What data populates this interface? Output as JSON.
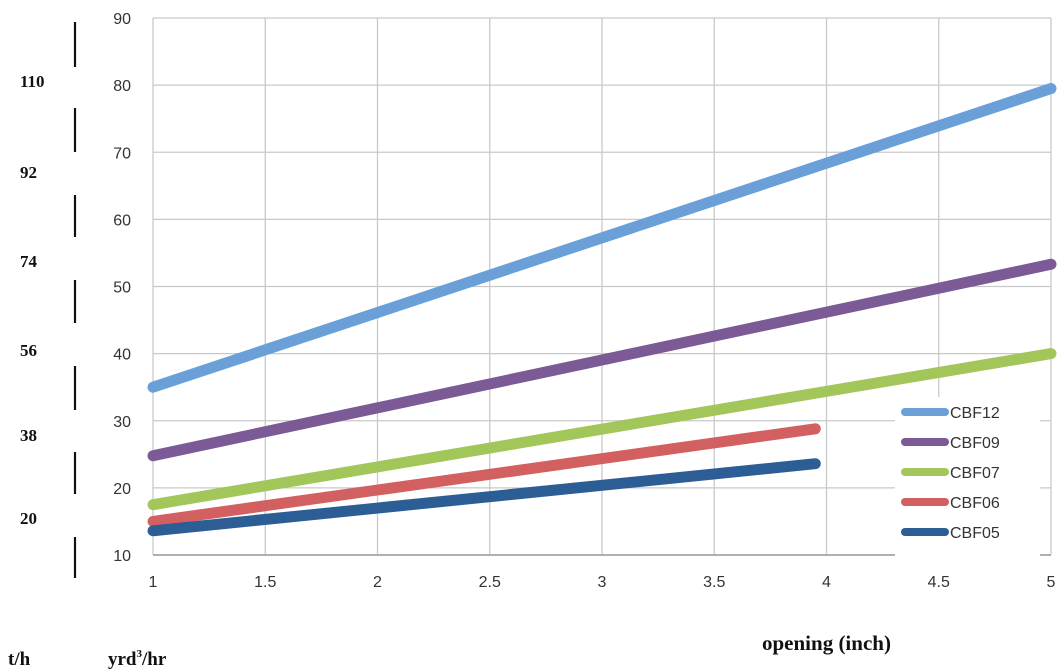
{
  "chart_data": {
    "type": "line",
    "xlabel": "opening (inch)",
    "ylabel": "yrd³/hr",
    "ylabel_base": "yrd",
    "ylabel_sup": "3",
    "ylabel_tail": "/hr",
    "secondary_axis_label": "t/h",
    "xlim": [
      1,
      5
    ],
    "ylim": [
      10,
      90
    ],
    "x_ticks": [
      "1",
      "1.5",
      "2",
      "2.5",
      "3",
      "3.5",
      "4",
      "4.5",
      "5"
    ],
    "y_ticks": [
      "10",
      "20",
      "30",
      "40",
      "50",
      "60",
      "70",
      "80",
      "90"
    ],
    "secondary_ticks": [
      "110",
      "92",
      "74",
      "56",
      "38",
      "20"
    ],
    "grid": true,
    "legend_position": "right",
    "series": [
      {
        "name": "CBF12",
        "color": "#6a9fd8",
        "x": [
          1,
          5
        ],
        "y": [
          35,
          79.5
        ]
      },
      {
        "name": "CBF09",
        "color": "#7b5a96",
        "x": [
          1,
          5
        ],
        "y": [
          24.8,
          53.3
        ]
      },
      {
        "name": "CBF07",
        "color": "#a2c65a",
        "x": [
          1,
          5
        ],
        "y": [
          17.5,
          40.0
        ]
      },
      {
        "name": "CBF06",
        "color": "#d36060",
        "x": [
          1,
          3.95
        ],
        "y": [
          15.0,
          28.8
        ]
      },
      {
        "name": "CBF05",
        "color": "#2c5d94",
        "x": [
          1,
          3.95
        ],
        "y": [
          13.6,
          23.6
        ]
      }
    ]
  }
}
